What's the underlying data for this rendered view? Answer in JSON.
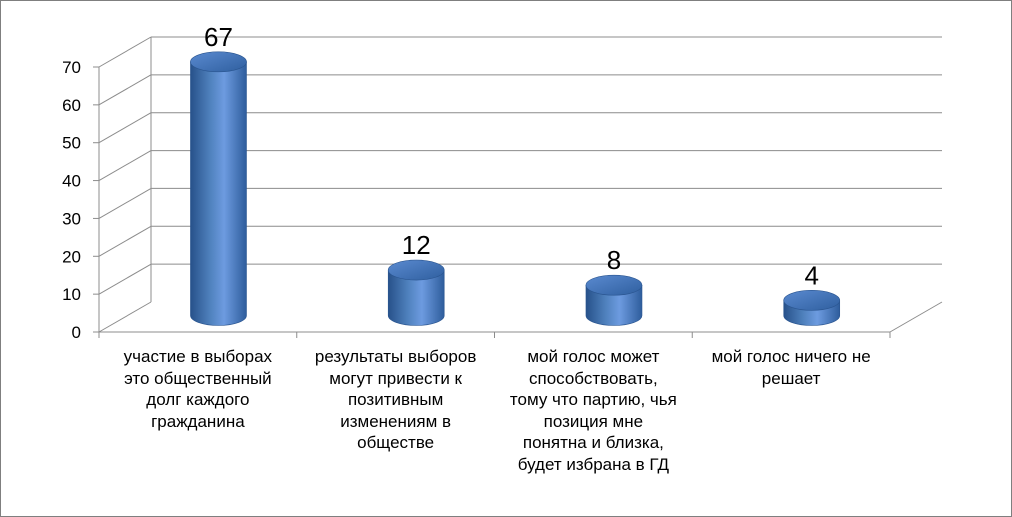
{
  "chart_data": {
    "type": "bar",
    "title": "",
    "xlabel": "",
    "ylabel": "",
    "ylim": [
      0,
      70
    ],
    "y_ticks": [
      0,
      10,
      20,
      30,
      40,
      50,
      60,
      70
    ],
    "grid": true,
    "legend": "none",
    "style": "3d-cylinder",
    "bar_color": "#4f81bd",
    "categories": [
      [
        "участие в выборах",
        "это общественный",
        "долг каждого",
        "гражданина"
      ],
      [
        "результаты выборов",
        "могут привести к",
        "позитивным",
        "изменениям в",
        "обществе"
      ],
      [
        "мой голос может",
        "способствовать,",
        "тому что партию, чья",
        "позиция мне",
        "понятна и близка,",
        "будет избрана в ГД"
      ],
      [
        "мой голос ничего не",
        "решает"
      ]
    ],
    "values": [
      67,
      12,
      8,
      4
    ],
    "data_labels": [
      "67",
      "12",
      "8",
      "4"
    ]
  }
}
